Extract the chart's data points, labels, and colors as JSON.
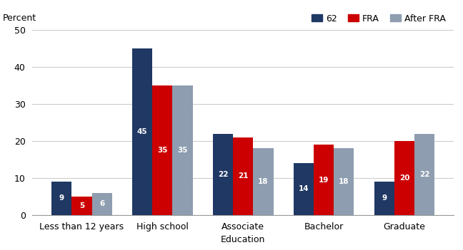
{
  "categories": [
    "Less than 12 years",
    "High school",
    "Associate",
    "Bachelor",
    "Graduate"
  ],
  "series": {
    "62": [
      9,
      45,
      22,
      14,
      9
    ],
    "FRA": [
      5,
      35,
      21,
      19,
      20
    ],
    "After FRA": [
      6,
      35,
      18,
      18,
      22
    ]
  },
  "colors": {
    "62": "#1f3864",
    "FRA": "#cc0000",
    "After FRA": "#8e9daf"
  },
  "legend_labels": [
    "62",
    "FRA",
    "After FRA"
  ],
  "percent_label": "Percent",
  "xlabel": "Education",
  "ylim": [
    0,
    50
  ],
  "yticks": [
    0,
    10,
    20,
    30,
    40,
    50
  ],
  "bar_width": 0.25,
  "label_fontsize": 7.5,
  "axis_fontsize": 9,
  "legend_fontsize": 9,
  "background_color": "#ffffff",
  "grid_color": "#cccccc"
}
